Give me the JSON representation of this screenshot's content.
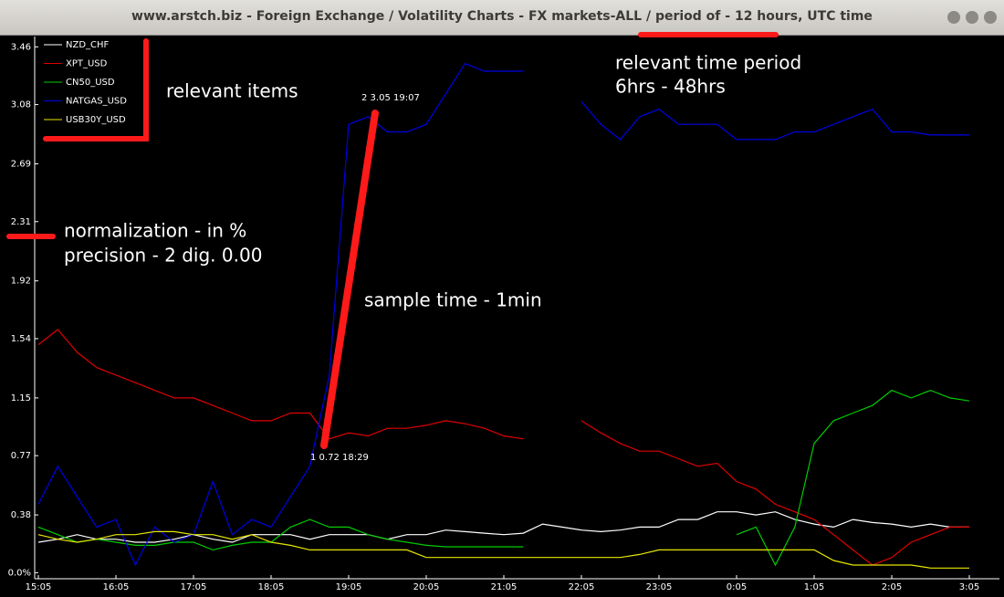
{
  "window": {
    "title": "www.arstch.biz - Foreign Exchange / Volatility Charts - FX markets-ALL / period of - 12 hours, UTC time"
  },
  "chart_data": {
    "type": "line",
    "x": [
      "15:05",
      "15:20",
      "15:35",
      "15:50",
      "16:05",
      "16:20",
      "16:35",
      "16:50",
      "17:05",
      "17:20",
      "17:35",
      "17:50",
      "18:05",
      "18:20",
      "18:35",
      "18:50",
      "19:05",
      "19:20",
      "19:35",
      "19:50",
      "20:05",
      "20:20",
      "20:35",
      "20:50",
      "21:05",
      "21:20",
      "21:35",
      "21:50",
      "22:05",
      "22:20",
      "22:35",
      "22:50",
      "23:05",
      "23:20",
      "23:35",
      "23:50",
      "0:05",
      "0:20",
      "0:35",
      "0:50",
      "1:05",
      "1:20",
      "1:35",
      "1:50",
      "2:05",
      "2:20",
      "2:35",
      "2:50",
      "3:05"
    ],
    "xticks": [
      "15:05",
      "16:05",
      "17:05",
      "18:05",
      "19:05",
      "20:05",
      "21:05",
      "22:05",
      "23:05",
      "0:05",
      "1:05",
      "2:05",
      "3:05"
    ],
    "ylim": [
      -0.04,
      3.54
    ],
    "yticks": [
      {
        "value": 0,
        "label": "0.0%"
      },
      0.38,
      0.77,
      1.15,
      1.54,
      1.92,
      2.31,
      2.69,
      3.08,
      3.46
    ],
    "series": [
      {
        "name": "NZD_CHF",
        "color": "#ffffff",
        "values": [
          0.2,
          0.22,
          0.25,
          0.22,
          0.22,
          0.2,
          0.2,
          0.22,
          0.25,
          0.22,
          0.2,
          0.25,
          0.25,
          0.25,
          0.22,
          0.25,
          0.25,
          0.25,
          0.22,
          0.25,
          0.25,
          0.28,
          0.27,
          0.26,
          0.25,
          0.26,
          0.32,
          0.3,
          0.28,
          0.27,
          0.28,
          0.3,
          0.3,
          0.35,
          0.35,
          0.4,
          0.4,
          0.38,
          0.4,
          0.35,
          0.32,
          0.3,
          0.35,
          0.33,
          0.32,
          0.3,
          0.32,
          0.3,
          0.3
        ]
      },
      {
        "name": "XPT_USD",
        "color": "#e00000",
        "values": [
          1.5,
          1.6,
          1.45,
          1.35,
          1.3,
          1.25,
          1.2,
          1.15,
          1.15,
          1.1,
          1.05,
          1.0,
          1.0,
          1.05,
          1.05,
          0.88,
          0.92,
          0.9,
          0.95,
          0.95,
          0.97,
          1.0,
          0.98,
          0.95,
          0.9,
          0.88,
          null,
          null,
          1.0,
          0.92,
          0.85,
          0.8,
          0.8,
          0.75,
          0.7,
          0.72,
          0.6,
          0.55,
          0.45,
          0.4,
          0.35,
          0.25,
          0.15,
          0.05,
          0.1,
          0.2,
          0.25,
          0.3,
          0.3
        ]
      },
      {
        "name": "CN50_USD",
        "color": "#00cc00",
        "values": [
          0.3,
          0.25,
          0.2,
          0.22,
          0.2,
          0.18,
          0.18,
          0.2,
          0.2,
          0.15,
          0.18,
          0.2,
          0.2,
          0.3,
          0.35,
          0.3,
          0.3,
          0.25,
          0.22,
          0.2,
          0.18,
          0.17,
          0.17,
          0.17,
          0.17,
          0.17,
          null,
          null,
          null,
          null,
          null,
          null,
          null,
          null,
          null,
          null,
          0.25,
          0.3,
          0.05,
          0.3,
          0.85,
          1.0,
          1.05,
          1.1,
          1.2,
          1.15,
          1.2,
          1.15,
          1.13
        ]
      },
      {
        "name": "NATGAS_USD",
        "color": "#0000e6",
        "values": [
          0.45,
          0.7,
          0.5,
          0.3,
          0.35,
          0.05,
          0.3,
          0.2,
          0.25,
          0.6,
          0.25,
          0.35,
          0.3,
          0.5,
          0.7,
          1.3,
          2.95,
          3.0,
          2.9,
          2.9,
          2.95,
          3.15,
          3.35,
          3.3,
          3.3,
          3.3,
          null,
          null,
          3.1,
          2.95,
          2.85,
          3.0,
          3.05,
          2.95,
          2.95,
          2.95,
          2.85,
          2.85,
          2.85,
          2.9,
          2.9,
          2.95,
          3.0,
          3.05,
          2.9,
          2.9,
          2.88,
          2.88,
          2.88
        ]
      },
      {
        "name": "USB30Y_USD",
        "color": "#e6e600",
        "values": [
          0.25,
          0.22,
          0.2,
          0.22,
          0.25,
          0.25,
          0.27,
          0.27,
          0.25,
          0.25,
          0.22,
          0.25,
          0.2,
          0.18,
          0.15,
          0.15,
          0.15,
          0.15,
          0.15,
          0.15,
          0.1,
          0.1,
          0.1,
          0.1,
          0.1,
          0.1,
          0.1,
          0.1,
          0.1,
          0.1,
          0.1,
          0.12,
          0.15,
          0.15,
          0.15,
          0.15,
          0.15,
          0.15,
          0.15,
          0.15,
          0.15,
          0.08,
          0.05,
          0.05,
          0.05,
          0.05,
          0.03,
          0.03,
          0.03
        ]
      }
    ],
    "point_labels": [
      "1 0.72 18:29",
      "2 3.05 19:07"
    ],
    "annotations": [
      "relevant items",
      "relevant time period",
      "6hrs - 48hrs",
      "normalization - in %",
      "precision - 2 dig. 0.00",
      "sample time - 1min"
    ]
  }
}
